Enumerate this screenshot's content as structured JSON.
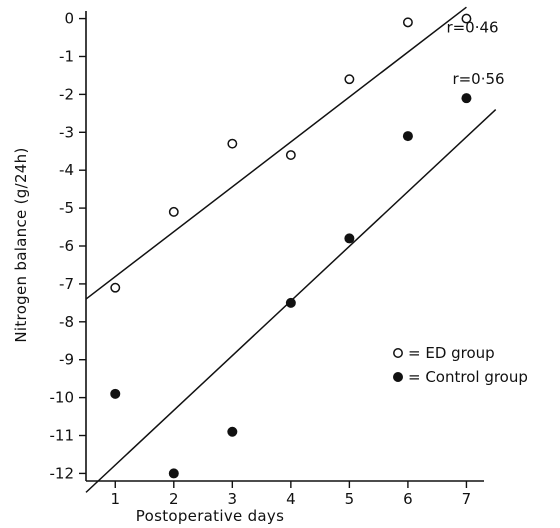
{
  "chart_data": {
    "type": "scatter",
    "title": "",
    "xlabel": "Postoperative days",
    "ylabel": "Nitrogen balance (g/24h)",
    "xlim": [
      0.5,
      7.3
    ],
    "ylim": [
      -12.2,
      0.2
    ],
    "x_ticks": [
      "1",
      "2",
      "3",
      "4",
      "5",
      "6",
      "7"
    ],
    "y_ticks": [
      "0",
      "-1",
      "-2",
      "-3",
      "-4",
      "-5",
      "-6",
      "-7",
      "-8",
      "-9",
      "-10",
      "-11",
      "-12"
    ],
    "grid": false,
    "legend_position": "bottom-right",
    "series": [
      {
        "name": "= ED group",
        "marker": "open-circle",
        "color": "#111111",
        "x": [
          1,
          2,
          3,
          4,
          5,
          6,
          7
        ],
        "y": [
          -7.1,
          -5.1,
          -3.3,
          -3.6,
          -1.6,
          -0.1,
          0.0
        ],
        "fit_line": {
          "x": [
            0.5,
            7.0
          ],
          "y": [
            -7.4,
            0.3
          ]
        },
        "annotation": "r=0·46"
      },
      {
        "name": "= Control group",
        "marker": "filled-circle",
        "color": "#111111",
        "x": [
          1,
          2,
          3,
          4,
          5,
          6,
          7
        ],
        "y": [
          -9.9,
          -12.0,
          -10.9,
          -7.5,
          -5.8,
          -3.1,
          -2.1
        ],
        "fit_line": {
          "x": [
            0.5,
            7.5
          ],
          "y": [
            -12.5,
            -2.4
          ]
        },
        "annotation": "r=0·56"
      }
    ]
  }
}
